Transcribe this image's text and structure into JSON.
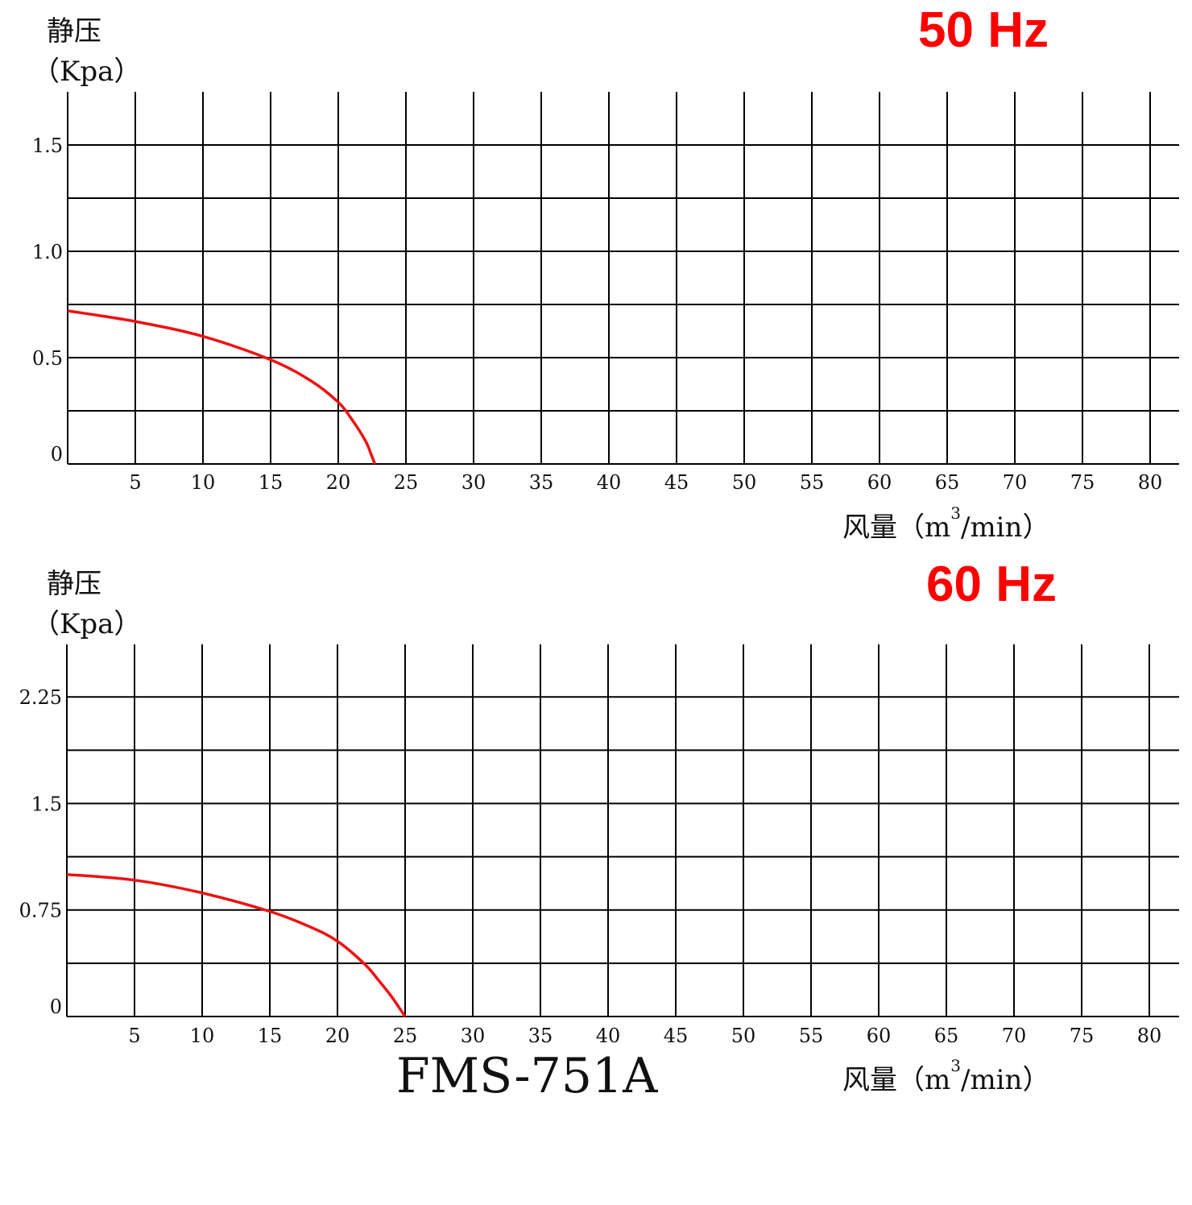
{
  "model_label": "FMS-751A",
  "chart_data": [
    {
      "type": "line",
      "title": "50 Hz",
      "ylabel_line1": "静压",
      "ylabel_line2": "（Kpa）",
      "xlabel_main": "风量（m",
      "xlabel_sup": "3",
      "xlabel_tail": "/min）",
      "xlim": [
        0,
        82
      ],
      "ylim": [
        0,
        1.75
      ],
      "x_ticks": [
        5,
        10,
        15,
        20,
        25,
        30,
        35,
        40,
        45,
        50,
        55,
        60,
        65,
        70,
        75,
        80
      ],
      "x_tick_labels": [
        "5",
        "10",
        "15",
        "20",
        "25",
        "30",
        "35",
        "40",
        "45",
        "50",
        "55",
        "60",
        "65",
        "70",
        "75",
        "80"
      ],
      "y_ticks": [
        0,
        0.5,
        1.0,
        1.5
      ],
      "y_tick_labels": [
        "0",
        "0.5",
        "1.0",
        "1.5"
      ],
      "y_grid": [
        0.25,
        0.5,
        0.75,
        1.0,
        1.25,
        1.5
      ],
      "grid": true,
      "series_color": "#ee1111",
      "series": [
        {
          "x": [
            0,
            5,
            10,
            15,
            18,
            20,
            21,
            22,
            22.4,
            22.7
          ],
          "y": [
            0.72,
            0.67,
            0.6,
            0.49,
            0.39,
            0.29,
            0.21,
            0.11,
            0.05,
            0.0
          ]
        }
      ]
    },
    {
      "type": "line",
      "title": "60 Hz",
      "ylabel_line1": "静压",
      "ylabel_line2": "（Kpa）",
      "xlabel_main": "风量（m",
      "xlabel_sup": "3",
      "xlabel_tail": "/min）",
      "xlim": [
        0,
        82
      ],
      "ylim": [
        0,
        2.62
      ],
      "x_ticks": [
        5,
        10,
        15,
        20,
        25,
        30,
        35,
        40,
        45,
        50,
        55,
        60,
        65,
        70,
        75,
        80
      ],
      "x_tick_labels": [
        "5",
        "10",
        "15",
        "20",
        "25",
        "30",
        "35",
        "40",
        "45",
        "50",
        "55",
        "60",
        "65",
        "70",
        "75",
        "80"
      ],
      "y_ticks": [
        0,
        0.75,
        1.5,
        2.25
      ],
      "y_tick_labels": [
        "0",
        "0.75",
        "1.5",
        "2.25"
      ],
      "y_grid": [
        0.375,
        0.75,
        1.125,
        1.5,
        1.875,
        2.25
      ],
      "grid": true,
      "series_color": "#ee1111",
      "series": [
        {
          "x": [
            0,
            5,
            10,
            15,
            18,
            20,
            22,
            23,
            24,
            25
          ],
          "y": [
            1.0,
            0.96,
            0.87,
            0.74,
            0.63,
            0.53,
            0.37,
            0.26,
            0.14,
            0.0
          ]
        }
      ]
    }
  ]
}
